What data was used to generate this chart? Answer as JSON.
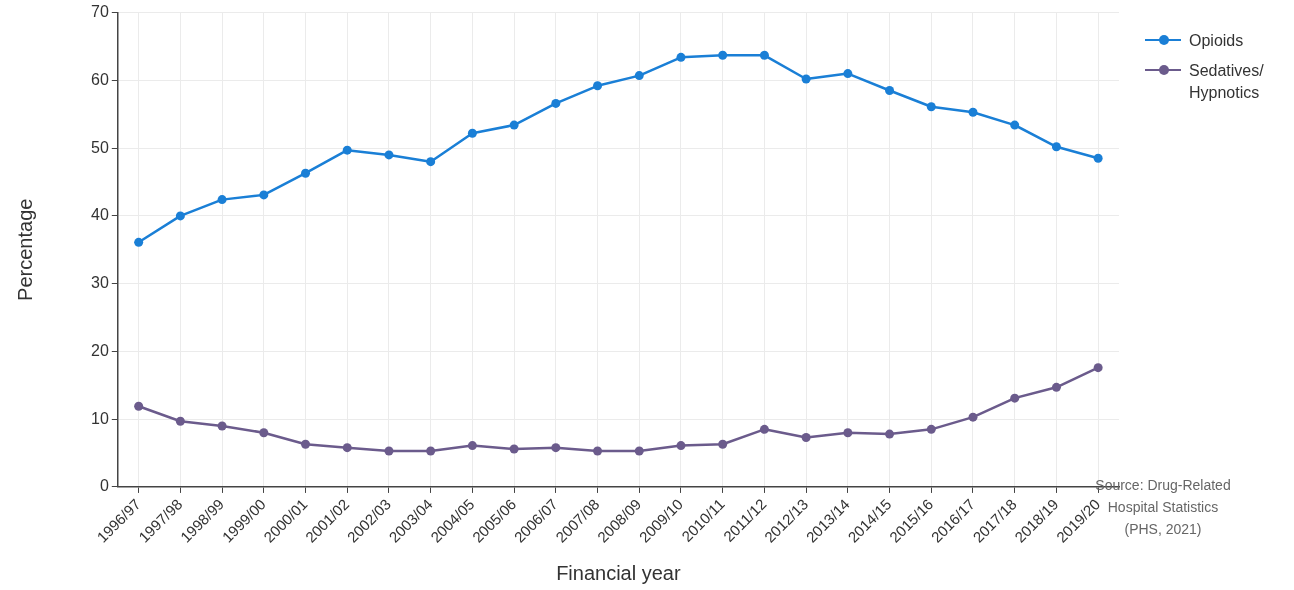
{
  "chart_data": {
    "type": "line",
    "xlabel": "Financial year",
    "ylabel": "Percentage",
    "categories": [
      "1996/97",
      "1997/98",
      "1998/99",
      "1999/00",
      "2000/01",
      "2001/02",
      "2002/03",
      "2003/04",
      "2004/05",
      "2005/06",
      "2006/07",
      "2007/08",
      "2008/09",
      "2009/10",
      "2010/11",
      "2011/12",
      "2012/13",
      "2013/14",
      "2014/15",
      "2015/16",
      "2016/17",
      "2017/18",
      "2018/19",
      "2019/20"
    ],
    "series": [
      {
        "name": "Opioids",
        "color": "#1a7fd6",
        "values": [
          36.1,
          40.0,
          42.4,
          43.1,
          46.3,
          49.7,
          49.0,
          48.0,
          52.2,
          53.4,
          56.6,
          59.2,
          60.7,
          63.4,
          63.7,
          63.7,
          60.2,
          61.0,
          58.5,
          56.1,
          55.3,
          53.4,
          50.2,
          48.5
        ]
      },
      {
        "name": "Sedatives/ Hypnotics",
        "color": "#6b5b8c",
        "values": [
          11.9,
          9.7,
          9.0,
          8.0,
          6.3,
          5.8,
          5.3,
          5.3,
          6.1,
          5.6,
          5.8,
          5.3,
          5.3,
          6.1,
          6.3,
          8.5,
          7.3,
          8.0,
          7.8,
          8.5,
          10.3,
          13.1,
          14.7,
          17.6
        ]
      }
    ],
    "ylim": [
      0,
      70
    ],
    "yticks": [
      0,
      10,
      20,
      30,
      40,
      50,
      60,
      70
    ],
    "grid": true,
    "legend": "top right",
    "marker": "circle",
    "line_style": "solid",
    "annotations": [
      "Source: Drug-Related Hospital Statistics (PHS, 2021)"
    ]
  }
}
